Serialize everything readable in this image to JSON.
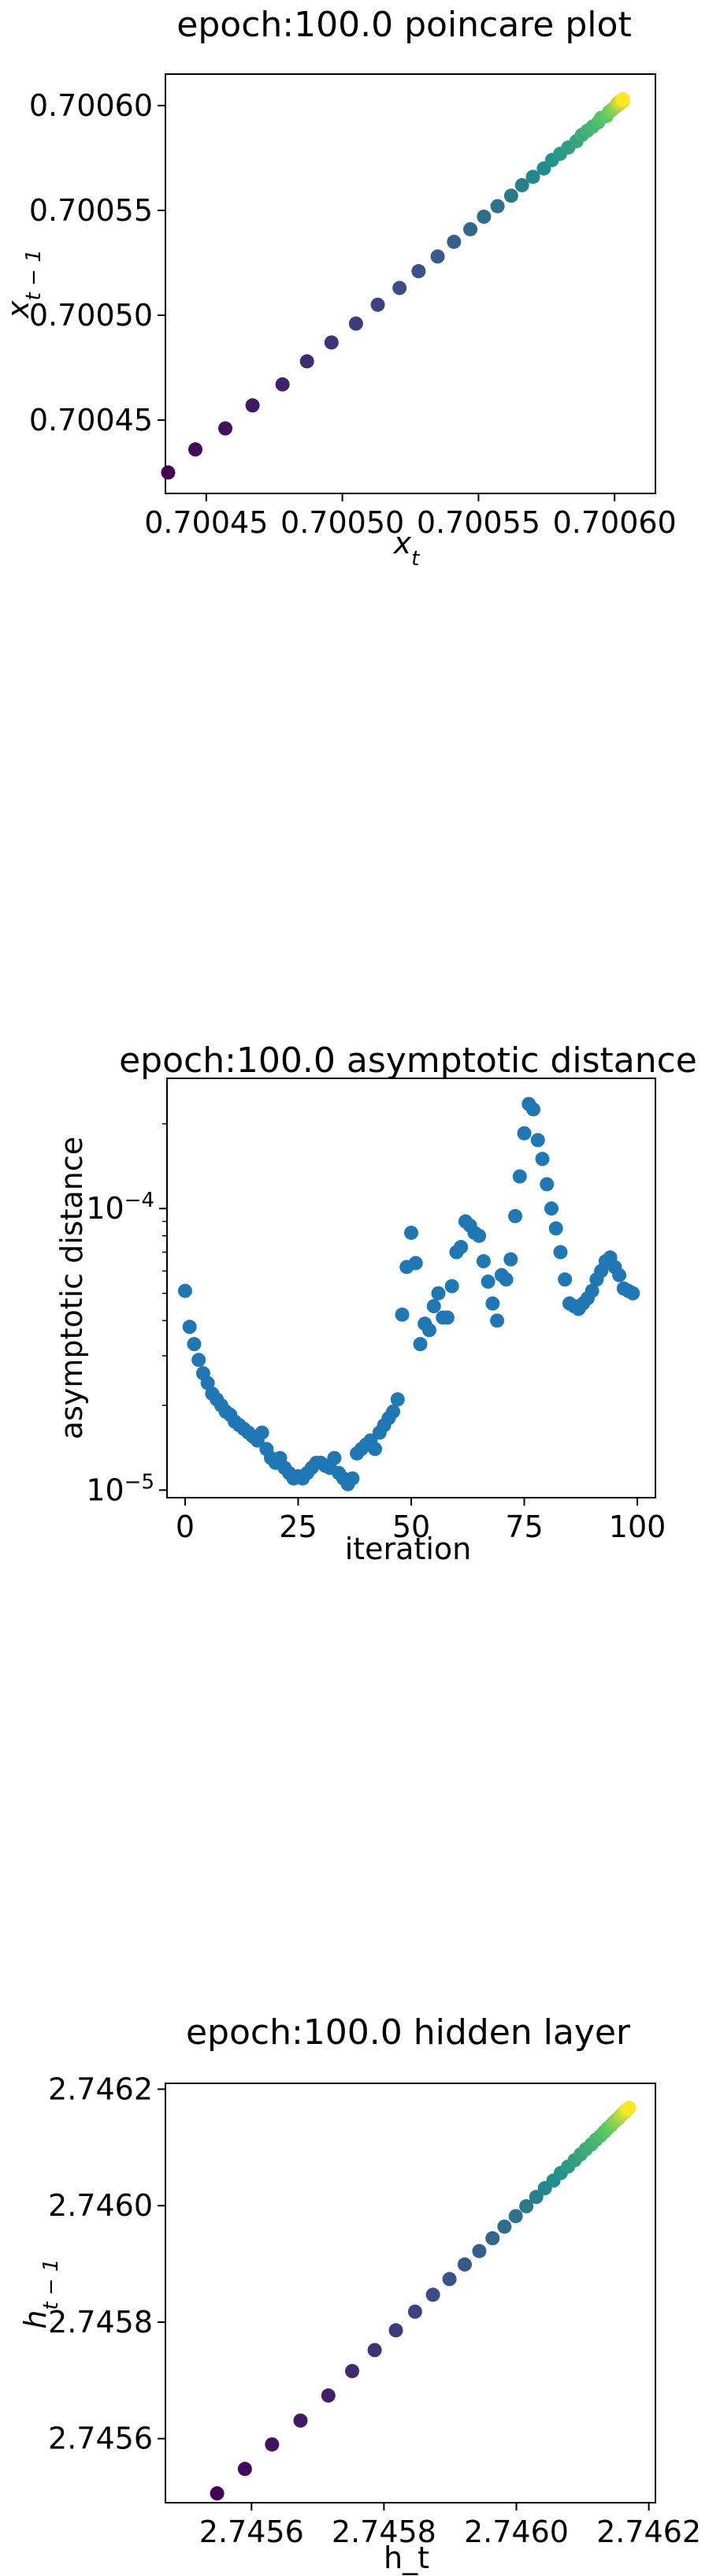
{
  "colors": {
    "viridis_start": "#440154",
    "viridis_mid": "#21908d",
    "viridis_end": "#fde725",
    "scatter_blue": "#1f77b4",
    "axis": "#000000"
  },
  "chart_data": [
    {
      "type": "scatter",
      "title": "epoch:100.0 poincare plot",
      "xlabel_base": "x",
      "xlabel_sub": "t",
      "ylabel_base": "x",
      "ylabel_sub": "t − 1",
      "xlim": [
        0.700435,
        0.700615
      ],
      "ylim": [
        0.700415,
        0.700615
      ],
      "x_ticks": [
        0.70045,
        0.7005,
        0.70055,
        0.7006
      ],
      "x_tick_labels": [
        "0.70045",
        "0.70050",
        "0.70055",
        "0.70060"
      ],
      "y_ticks": [
        0.70045,
        0.7005,
        0.70055,
        0.7006
      ],
      "y_tick_labels": [
        "0.70045",
        "0.70050",
        "0.70055",
        "0.70060"
      ],
      "colormap": "viridis",
      "grid": false,
      "series_note": "points lie on the diagonal x_{t-1} ≈ x_t, converging toward 0.70060",
      "x": [
        0.700436,
        0.700446,
        0.700457,
        0.700467,
        0.700478,
        0.700487,
        0.700496,
        0.700505,
        0.700513,
        0.700521,
        0.700528,
        0.700535,
        0.700541,
        0.700547,
        0.700552,
        0.700557,
        0.700562,
        0.700566,
        0.70057,
        0.700574,
        0.700577,
        0.70058,
        0.700583,
        0.700586,
        0.700588,
        0.70059,
        0.700592,
        0.700594,
        0.700595,
        0.700597,
        0.700598,
        0.700599,
        0.7006,
        0.700601,
        0.700601,
        0.700602,
        0.700602,
        0.700603,
        0.700603,
        0.700603
      ],
      "y": [
        0.700425,
        0.700436,
        0.700446,
        0.700457,
        0.700467,
        0.700478,
        0.700487,
        0.700496,
        0.700505,
        0.700513,
        0.700521,
        0.700528,
        0.700535,
        0.700541,
        0.700547,
        0.700552,
        0.700557,
        0.700562,
        0.700566,
        0.70057,
        0.700574,
        0.700577,
        0.70058,
        0.700583,
        0.700586,
        0.700588,
        0.70059,
        0.700592,
        0.700594,
        0.700595,
        0.700597,
        0.700598,
        0.700599,
        0.7006,
        0.700601,
        0.700601,
        0.700602,
        0.700602,
        0.700603,
        0.700603
      ]
    },
    {
      "type": "scatter",
      "title": "epoch:100.0 asymptotic distance",
      "xlabel": "iteration",
      "ylabel": "asymptotic distance",
      "xlim": [
        -4,
        104
      ],
      "ylim": [
        9.4e-06,
        0.00029
      ],
      "yscale": "log",
      "x_ticks": [
        0,
        25,
        50,
        75,
        100
      ],
      "x_tick_labels": [
        "0",
        "25",
        "50",
        "75",
        "100"
      ],
      "y_ticks": [
        1e-05,
        0.0001
      ],
      "y_tick_labels": [
        {
          "base": "10",
          "exp": "−5"
        },
        {
          "base": "10",
          "exp": "−4"
        }
      ],
      "color": "#1f77b4",
      "grid": false,
      "x": [
        0,
        1,
        2,
        3,
        4,
        5,
        6,
        7,
        8,
        9,
        10,
        11,
        12,
        13,
        14,
        15,
        16,
        17,
        18,
        19,
        20,
        21,
        22,
        23,
        24,
        25,
        26,
        27,
        28,
        29,
        30,
        31,
        32,
        33,
        34,
        35,
        36,
        37,
        38,
        39,
        40,
        41,
        42,
        43,
        44,
        45,
        46,
        47,
        48,
        49,
        50,
        51,
        52,
        53,
        54,
        55,
        56,
        57,
        58,
        59,
        60,
        61,
        62,
        63,
        64,
        65,
        66,
        67,
        68,
        69,
        70,
        71,
        72,
        73,
        74,
        75,
        76,
        77,
        78,
        79,
        80,
        81,
        82,
        83,
        84,
        85,
        86,
        87,
        88,
        89,
        90,
        91,
        92,
        93,
        94,
        95,
        96,
        97,
        98,
        99
      ],
      "y": [
        5.1e-05,
        3.8e-05,
        3.3e-05,
        2.9e-05,
        2.6e-05,
        2.4e-05,
        2.2e-05,
        2.1e-05,
        2e-05,
        1.9e-05,
        1.85e-05,
        1.75e-05,
        1.7e-05,
        1.65e-05,
        1.6e-05,
        1.55e-05,
        1.5e-05,
        1.6e-05,
        1.4e-05,
        1.3e-05,
        1.25e-05,
        1.3e-05,
        1.2e-05,
        1.15e-05,
        1.1e-05,
        1.12e-05,
        1.1e-05,
        1.15e-05,
        1.2e-05,
        1.25e-05,
        1.25e-05,
        1.22e-05,
        1.2e-05,
        1.3e-05,
        1.15e-05,
        1.1e-05,
        1.05e-05,
        1.1e-05,
        1.35e-05,
        1.4e-05,
        1.45e-05,
        1.5e-05,
        1.4e-05,
        1.6e-05,
        1.7e-05,
        1.8e-05,
        1.9e-05,
        2.1e-05,
        4.2e-05,
        6.2e-05,
        8.2e-05,
        6.4e-05,
        3.3e-05,
        3.9e-05,
        3.7e-05,
        4.5e-05,
        5e-05,
        4.1e-05,
        4.1e-05,
        5.3e-05,
        7e-05,
        7.3e-05,
        9e-05,
        8.7e-05,
        8.2e-05,
        8e-05,
        6.5e-05,
        5.5e-05,
        4.6e-05,
        4e-05,
        5.8e-05,
        5.6e-05,
        6.6e-05,
        9.4e-05,
        0.00013,
        0.000185,
        0.000235,
        0.000225,
        0.000175,
        0.00015,
        0.000122,
        0.0001,
        8.5e-05,
        7e-05,
        5.6e-05,
        4.6e-05,
        4.5e-05,
        4.4e-05,
        4.6e-05,
        4.8e-05,
        5.1e-05,
        5.6e-05,
        6e-05,
        6.5e-05,
        6.7e-05,
        6.2e-05,
        5.8e-05,
        5.2e-05,
        5.1e-05,
        5e-05
      ]
    },
    {
      "type": "scatter",
      "title": "epoch:100.0 hidden layer",
      "xlabel": "h_t",
      "ylabel_base": "h",
      "ylabel_sub": "t − 1",
      "xlim": [
        2.74547,
        2.74621
      ],
      "ylim": [
        2.74549,
        2.74621
      ],
      "x_ticks": [
        2.7456,
        2.7458,
        2.746,
        2.7462
      ],
      "x_tick_labels": [
        "2.7456",
        "2.7458",
        "2.7460",
        "2.7462"
      ],
      "y_ticks": [
        2.7456,
        2.7458,
        2.746,
        2.7462
      ],
      "y_tick_labels": [
        "2.7456",
        "2.7458",
        "2.7460",
        "2.7462"
      ],
      "colormap": "viridis",
      "grid": false,
      "x": [
        2.745548,
        2.74559,
        2.745631,
        2.745674,
        2.745716,
        2.745752,
        2.745786,
        2.745818,
        2.745847,
        2.745874,
        2.745899,
        2.745922,
        2.745944,
        2.745964,
        2.745982,
        2.745999,
        2.746015,
        2.74603,
        2.746043,
        2.746056,
        2.746067,
        2.746078,
        2.746088,
        2.746097,
        2.746105,
        2.746113,
        2.74612,
        2.746127,
        2.746133,
        2.746138,
        2.746143,
        2.746147,
        2.746151,
        2.746155,
        2.746158,
        2.746161,
        2.746164,
        2.746166,
        2.746168,
        2.74617
      ],
      "y": [
        2.745506,
        2.745548,
        2.74559,
        2.745631,
        2.745674,
        2.745716,
        2.745752,
        2.745786,
        2.745818,
        2.745847,
        2.745874,
        2.745899,
        2.745922,
        2.745944,
        2.745964,
        2.745982,
        2.745999,
        2.746015,
        2.74603,
        2.746043,
        2.746056,
        2.746067,
        2.746078,
        2.746088,
        2.746097,
        2.746105,
        2.746113,
        2.74612,
        2.746127,
        2.746133,
        2.746138,
        2.746143,
        2.746147,
        2.746151,
        2.746155,
        2.746158,
        2.746161,
        2.746164,
        2.746166,
        2.746168
      ]
    }
  ]
}
